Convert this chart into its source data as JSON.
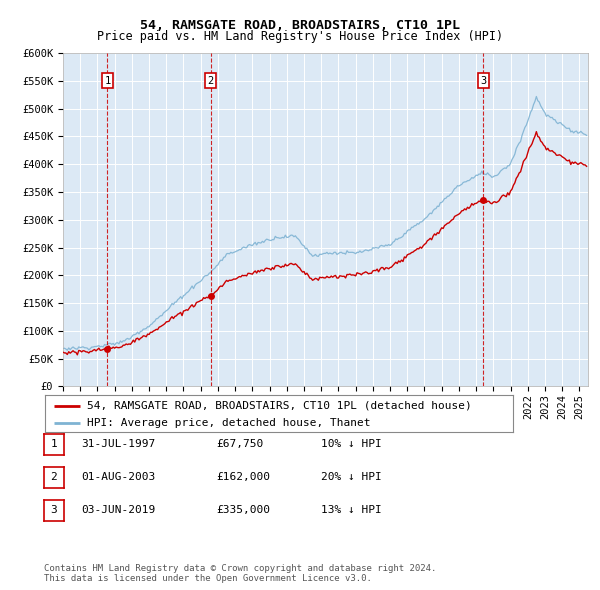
{
  "title": "54, RAMSGATE ROAD, BROADSTAIRS, CT10 1PL",
  "subtitle": "Price paid vs. HM Land Registry's House Price Index (HPI)",
  "ylim": [
    0,
    600000
  ],
  "yticks": [
    0,
    50000,
    100000,
    150000,
    200000,
    250000,
    300000,
    350000,
    400000,
    450000,
    500000,
    550000,
    600000
  ],
  "ytick_labels": [
    "£0",
    "£50K",
    "£100K",
    "£150K",
    "£200K",
    "£250K",
    "£300K",
    "£350K",
    "£400K",
    "£450K",
    "£500K",
    "£550K",
    "£600K"
  ],
  "plot_bg_color": "#dce9f5",
  "grid_color": "#ffffff",
  "sale_dates_float": [
    1997.58,
    2003.58,
    2019.42
  ],
  "sale_prices": [
    67750,
    162000,
    335000
  ],
  "sale_labels": [
    "1",
    "2",
    "3"
  ],
  "vline_color": "#cc0000",
  "red_line_color": "#cc0000",
  "blue_line_color": "#7fb3d3",
  "legend_label_red": "54, RAMSGATE ROAD, BROADSTAIRS, CT10 1PL (detached house)",
  "legend_label_blue": "HPI: Average price, detached house, Thanet",
  "table_data": [
    [
      "1",
      "31-JUL-1997",
      "£67,750",
      "10% ↓ HPI"
    ],
    [
      "2",
      "01-AUG-2003",
      "£162,000",
      "20% ↓ HPI"
    ],
    [
      "3",
      "03-JUN-2019",
      "£335,000",
      "13% ↓ HPI"
    ]
  ],
  "footer": "Contains HM Land Registry data © Crown copyright and database right 2024.\nThis data is licensed under the Open Government Licence v3.0.",
  "title_fontsize": 9.5,
  "subtitle_fontsize": 8.5,
  "axis_fontsize": 7.5,
  "legend_fontsize": 8,
  "table_fontsize": 8,
  "footer_fontsize": 6.5
}
